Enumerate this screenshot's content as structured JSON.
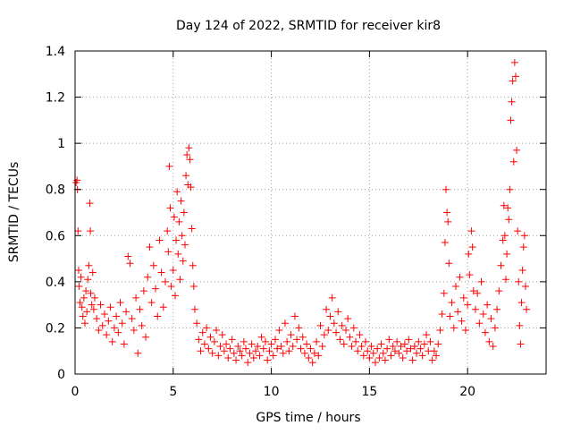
{
  "chart_data": {
    "type": "scatter",
    "title": "Day 124 of 2022, SRMTID for receiver kir8",
    "xlabel": "GPS time / hours",
    "ylabel": "SRMTID / TECUs",
    "xlim": [
      0,
      24
    ],
    "ylim": [
      0,
      1.4
    ],
    "grid": true,
    "x_ticks": [
      0,
      5,
      10,
      15,
      20
    ],
    "x_tick_labels": [
      "0",
      "5",
      "10",
      "15",
      "20"
    ],
    "y_ticks": [
      0,
      0.2,
      0.4,
      0.6,
      0.8,
      1.0,
      1.2,
      1.4
    ],
    "y_tick_labels": [
      "0",
      "0.2",
      "0.4",
      "0.6",
      "0.8",
      "1",
      "1.2",
      "1.4"
    ],
    "marker": "plus",
    "series": [
      {
        "name": "SRMTID",
        "color": "#ff0000",
        "points": [
          [
            0.05,
            0.83
          ],
          [
            0.1,
            0.84
          ],
          [
            0.12,
            0.8
          ],
          [
            0.15,
            0.62
          ],
          [
            0.18,
            0.45
          ],
          [
            0.2,
            0.38
          ],
          [
            0.25,
            0.31
          ],
          [
            0.3,
            0.42
          ],
          [
            0.35,
            0.29
          ],
          [
            0.4,
            0.25
          ],
          [
            0.45,
            0.33
          ],
          [
            0.5,
            0.22
          ],
          [
            0.55,
            0.36
          ],
          [
            0.6,
            0.27
          ],
          [
            0.65,
            0.41
          ],
          [
            0.7,
            0.47
          ],
          [
            0.75,
            0.74
          ],
          [
            0.78,
            0.62
          ],
          [
            0.8,
            0.35
          ],
          [
            0.85,
            0.3
          ],
          [
            0.9,
            0.44
          ],
          [
            0.95,
            0.28
          ],
          [
            1.0,
            0.33
          ],
          [
            1.1,
            0.24
          ],
          [
            1.2,
            0.19
          ],
          [
            1.3,
            0.3
          ],
          [
            1.4,
            0.21
          ],
          [
            1.5,
            0.26
          ],
          [
            1.6,
            0.17
          ],
          [
            1.7,
            0.23
          ],
          [
            1.8,
            0.29
          ],
          [
            1.9,
            0.14
          ],
          [
            2.0,
            0.2
          ],
          [
            2.1,
            0.25
          ],
          [
            2.2,
            0.18
          ],
          [
            2.3,
            0.31
          ],
          [
            2.4,
            0.22
          ],
          [
            2.5,
            0.13
          ],
          [
            2.6,
            0.27
          ],
          [
            2.7,
            0.51
          ],
          [
            2.8,
            0.48
          ],
          [
            2.9,
            0.24
          ],
          [
            3.0,
            0.19
          ],
          [
            3.1,
            0.33
          ],
          [
            3.2,
            0.09
          ],
          [
            3.3,
            0.28
          ],
          [
            3.4,
            0.21
          ],
          [
            3.5,
            0.36
          ],
          [
            3.6,
            0.16
          ],
          [
            3.7,
            0.42
          ],
          [
            3.8,
            0.55
          ],
          [
            3.9,
            0.31
          ],
          [
            4.0,
            0.47
          ],
          [
            4.1,
            0.37
          ],
          [
            4.2,
            0.25
          ],
          [
            4.3,
            0.58
          ],
          [
            4.4,
            0.44
          ],
          [
            4.5,
            0.29
          ],
          [
            4.6,
            0.4
          ],
          [
            4.7,
            0.62
          ],
          [
            4.75,
            0.53
          ],
          [
            4.8,
            0.9
          ],
          [
            4.85,
            0.72
          ],
          [
            4.9,
            0.38
          ],
          [
            5.0,
            0.45
          ],
          [
            5.05,
            0.68
          ],
          [
            5.1,
            0.34
          ],
          [
            5.15,
            0.58
          ],
          [
            5.2,
            0.79
          ],
          [
            5.25,
            0.52
          ],
          [
            5.3,
            0.66
          ],
          [
            5.35,
            0.41
          ],
          [
            5.4,
            0.75
          ],
          [
            5.45,
            0.6
          ],
          [
            5.5,
            0.49
          ],
          [
            5.55,
            0.7
          ],
          [
            5.6,
            0.56
          ],
          [
            5.65,
            0.86
          ],
          [
            5.7,
            0.95
          ],
          [
            5.75,
            0.82
          ],
          [
            5.8,
            0.98
          ],
          [
            5.85,
            0.93
          ],
          [
            5.9,
            0.81
          ],
          [
            5.95,
            0.63
          ],
          [
            6.0,
            0.47
          ],
          [
            6.05,
            0.38
          ],
          [
            6.1,
            0.28
          ],
          [
            6.2,
            0.22
          ],
          [
            6.3,
            0.15
          ],
          [
            6.4,
            0.1
          ],
          [
            6.5,
            0.18
          ],
          [
            6.6,
            0.13
          ],
          [
            6.7,
            0.2
          ],
          [
            6.8,
            0.11
          ],
          [
            6.9,
            0.16
          ],
          [
            7.0,
            0.09
          ],
          [
            7.1,
            0.14
          ],
          [
            7.2,
            0.19
          ],
          [
            7.3,
            0.08
          ],
          [
            7.4,
            0.12
          ],
          [
            7.5,
            0.17
          ],
          [
            7.6,
            0.1
          ],
          [
            7.7,
            0.13
          ],
          [
            7.8,
            0.07
          ],
          [
            7.9,
            0.11
          ],
          [
            8.0,
            0.15
          ],
          [
            8.1,
            0.09
          ],
          [
            8.2,
            0.06
          ],
          [
            8.3,
            0.12
          ],
          [
            8.4,
            0.1
          ],
          [
            8.5,
            0.08
          ],
          [
            8.6,
            0.14
          ],
          [
            8.7,
            0.11
          ],
          [
            8.8,
            0.05
          ],
          [
            8.9,
            0.09
          ],
          [
            9.0,
            0.13
          ],
          [
            9.1,
            0.07
          ],
          [
            9.2,
            0.1
          ],
          [
            9.3,
            0.12
          ],
          [
            9.4,
            0.08
          ],
          [
            9.5,
            0.16
          ],
          [
            9.6,
            0.11
          ],
          [
            9.7,
            0.14
          ],
          [
            9.8,
            0.06
          ],
          [
            9.9,
            0.1
          ],
          [
            10.0,
            0.13
          ],
          [
            10.1,
            0.08
          ],
          [
            10.2,
            0.15
          ],
          [
            10.3,
            0.11
          ],
          [
            10.4,
            0.19
          ],
          [
            10.5,
            0.12
          ],
          [
            10.6,
            0.09
          ],
          [
            10.7,
            0.22
          ],
          [
            10.8,
            0.14
          ],
          [
            10.9,
            0.1
          ],
          [
            11.0,
            0.17
          ],
          [
            11.1,
            0.12
          ],
          [
            11.2,
            0.25
          ],
          [
            11.3,
            0.15
          ],
          [
            11.4,
            0.2
          ],
          [
            11.5,
            0.11
          ],
          [
            11.6,
            0.16
          ],
          [
            11.7,
            0.09
          ],
          [
            11.8,
            0.13
          ],
          [
            11.9,
            0.07
          ],
          [
            12.0,
            0.11
          ],
          [
            12.1,
            0.05
          ],
          [
            12.2,
            0.09
          ],
          [
            12.3,
            0.14
          ],
          [
            12.4,
            0.08
          ],
          [
            12.5,
            0.21
          ],
          [
            12.6,
            0.12
          ],
          [
            12.7,
            0.17
          ],
          [
            12.8,
            0.28
          ],
          [
            12.9,
            0.19
          ],
          [
            13.0,
            0.25
          ],
          [
            13.1,
            0.33
          ],
          [
            13.2,
            0.22
          ],
          [
            13.3,
            0.18
          ],
          [
            13.4,
            0.27
          ],
          [
            13.5,
            0.15
          ],
          [
            13.6,
            0.21
          ],
          [
            13.7,
            0.13
          ],
          [
            13.8,
            0.19
          ],
          [
            13.9,
            0.24
          ],
          [
            14.0,
            0.16
          ],
          [
            14.1,
            0.12
          ],
          [
            14.2,
            0.2
          ],
          [
            14.3,
            0.14
          ],
          [
            14.4,
            0.1
          ],
          [
            14.5,
            0.17
          ],
          [
            14.6,
            0.12
          ],
          [
            14.7,
            0.08
          ],
          [
            14.8,
            0.14
          ],
          [
            14.9,
            0.1
          ],
          [
            15.0,
            0.07
          ],
          [
            15.1,
            0.12
          ],
          [
            15.2,
            0.09
          ],
          [
            15.3,
            0.05
          ],
          [
            15.4,
            0.11
          ],
          [
            15.5,
            0.07
          ],
          [
            15.6,
            0.13
          ],
          [
            15.7,
            0.09
          ],
          [
            15.8,
            0.06
          ],
          [
            15.9,
            0.11
          ],
          [
            16.0,
            0.15
          ],
          [
            16.1,
            0.08
          ],
          [
            16.2,
            0.12
          ],
          [
            16.3,
            0.1
          ],
          [
            16.4,
            0.14
          ],
          [
            16.5,
            0.09
          ],
          [
            16.6,
            0.12
          ],
          [
            16.7,
            0.07
          ],
          [
            16.8,
            0.13
          ],
          [
            16.9,
            0.1
          ],
          [
            17.0,
            0.15
          ],
          [
            17.1,
            0.11
          ],
          [
            17.2,
            0.06
          ],
          [
            17.3,
            0.12
          ],
          [
            17.4,
            0.09
          ],
          [
            17.5,
            0.14
          ],
          [
            17.6,
            0.11
          ],
          [
            17.7,
            0.08
          ],
          [
            17.8,
            0.13
          ],
          [
            17.9,
            0.17
          ],
          [
            18.0,
            0.1
          ],
          [
            18.1,
            0.14
          ],
          [
            18.2,
            0.06
          ],
          [
            18.3,
            0.1
          ],
          [
            18.4,
            0.08
          ],
          [
            18.5,
            0.13
          ],
          [
            18.6,
            0.19
          ],
          [
            18.7,
            0.26
          ],
          [
            18.8,
            0.35
          ],
          [
            18.85,
            0.57
          ],
          [
            18.9,
            0.8
          ],
          [
            18.95,
            0.7
          ],
          [
            19.0,
            0.66
          ],
          [
            19.05,
            0.48
          ],
          [
            19.1,
            0.25
          ],
          [
            19.2,
            0.31
          ],
          [
            19.3,
            0.2
          ],
          [
            19.4,
            0.38
          ],
          [
            19.5,
            0.27
          ],
          [
            19.6,
            0.42
          ],
          [
            19.7,
            0.23
          ],
          [
            19.8,
            0.33
          ],
          [
            19.9,
            0.19
          ],
          [
            20.0,
            0.3
          ],
          [
            20.05,
            0.52
          ],
          [
            20.1,
            0.43
          ],
          [
            20.2,
            0.62
          ],
          [
            20.25,
            0.55
          ],
          [
            20.3,
            0.36
          ],
          [
            20.4,
            0.28
          ],
          [
            20.5,
            0.35
          ],
          [
            20.6,
            0.22
          ],
          [
            20.7,
            0.4
          ],
          [
            20.8,
            0.26
          ],
          [
            20.9,
            0.18
          ],
          [
            21.0,
            0.3
          ],
          [
            21.1,
            0.14
          ],
          [
            21.2,
            0.24
          ],
          [
            21.3,
            0.12
          ],
          [
            21.4,
            0.2
          ],
          [
            21.5,
            0.28
          ],
          [
            21.6,
            0.36
          ],
          [
            21.7,
            0.47
          ],
          [
            21.8,
            0.58
          ],
          [
            21.85,
            0.73
          ],
          [
            21.9,
            0.6
          ],
          [
            21.95,
            0.41
          ],
          [
            22.0,
            0.52
          ],
          [
            22.05,
            0.72
          ],
          [
            22.1,
            0.67
          ],
          [
            22.15,
            0.8
          ],
          [
            22.2,
            1.1
          ],
          [
            22.25,
            1.18
          ],
          [
            22.3,
            1.27
          ],
          [
            22.35,
            0.92
          ],
          [
            22.4,
            1.35
          ],
          [
            22.45,
            1.29
          ],
          [
            22.5,
            0.97
          ],
          [
            22.55,
            0.62
          ],
          [
            22.6,
            0.4
          ],
          [
            22.65,
            0.21
          ],
          [
            22.7,
            0.13
          ],
          [
            22.75,
            0.31
          ],
          [
            22.8,
            0.45
          ],
          [
            22.85,
            0.55
          ],
          [
            22.9,
            0.6
          ],
          [
            22.95,
            0.38
          ],
          [
            23.0,
            0.28
          ]
        ]
      }
    ]
  }
}
